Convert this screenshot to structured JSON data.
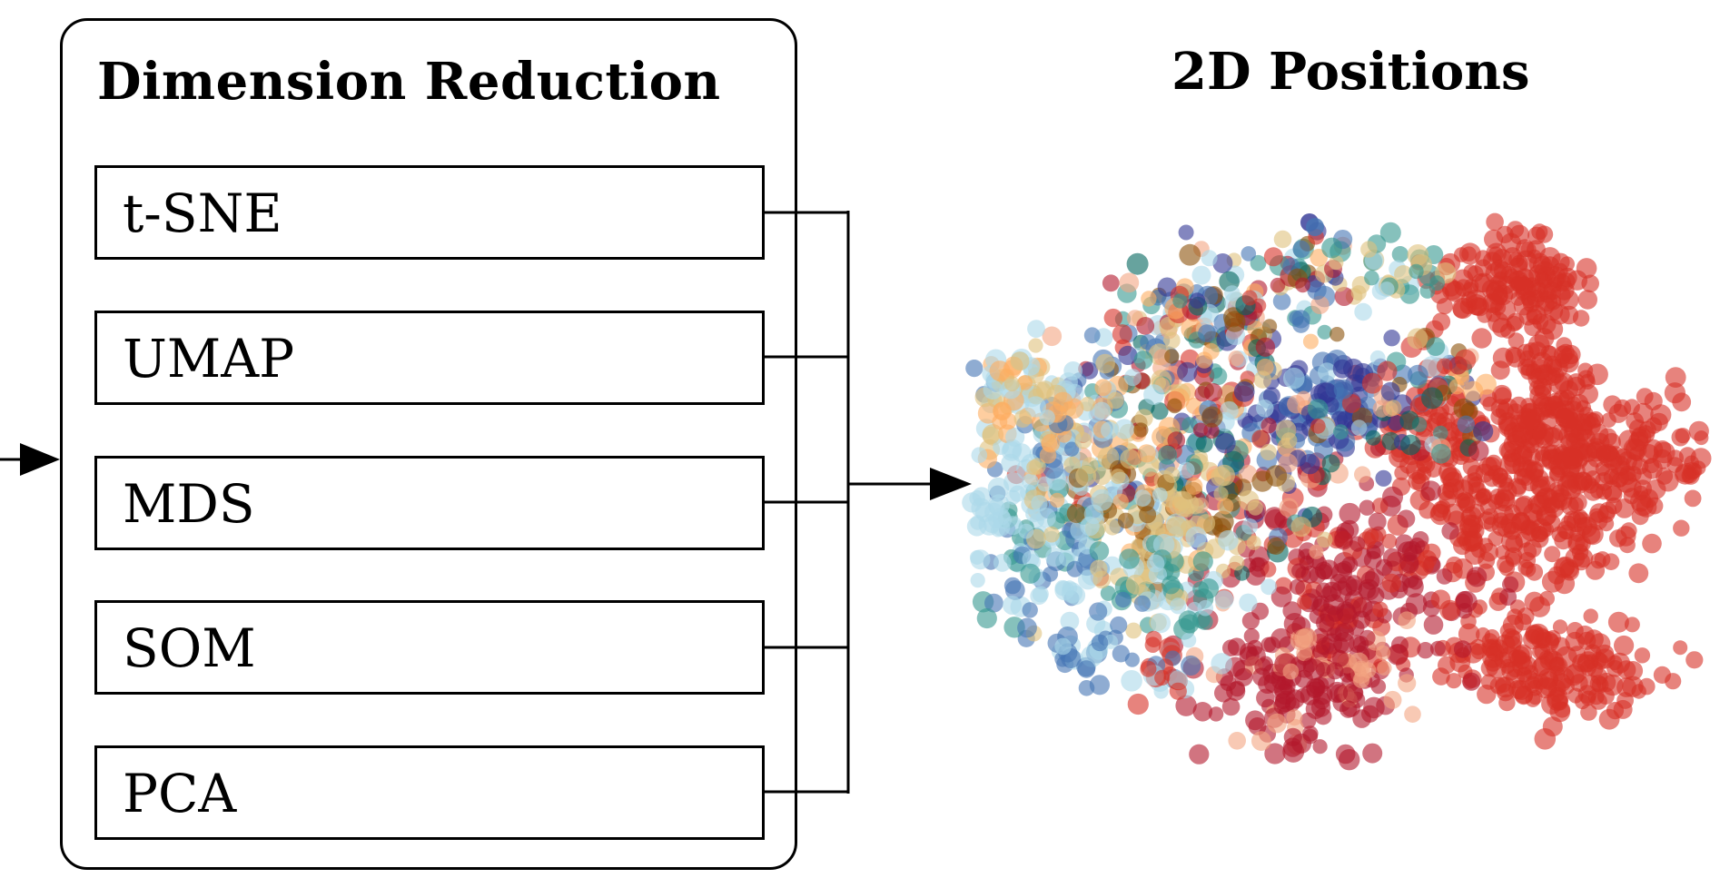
{
  "dimension_reduction": {
    "title": "Dimension Reduction",
    "methods": [
      {
        "label": "t-SNE"
      },
      {
        "label": "UMAP"
      },
      {
        "label": "MDS"
      },
      {
        "label": "SOM"
      },
      {
        "label": "PCA"
      }
    ]
  },
  "output": {
    "title": "2D Positions"
  },
  "colors": {
    "red": "#d73027",
    "dark_red": "#b2182b",
    "light_blue": "#abd9e9",
    "blue": "#4575b4",
    "navy": "#313695",
    "orange": "#fdae61",
    "teal": "#35978f",
    "dark_green": "#01665e",
    "tan": "#dfc27d",
    "brown": "#8c510a",
    "pink": "#f4a582"
  }
}
